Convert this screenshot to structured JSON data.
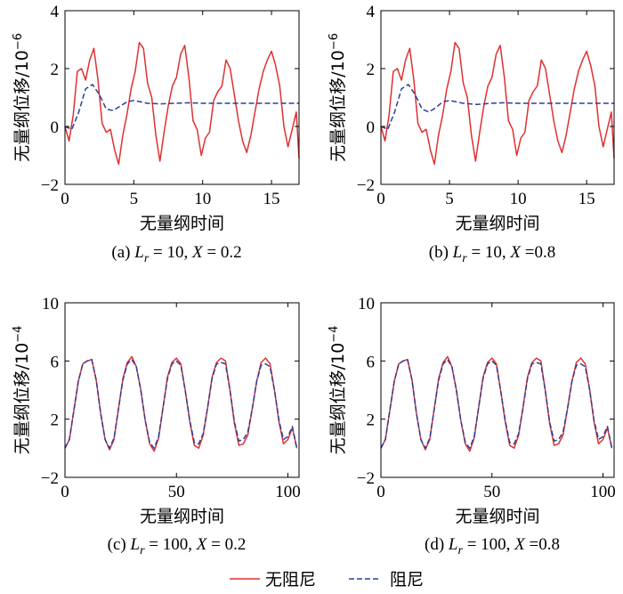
{
  "legend": {
    "undamped": "无阻尼",
    "damped": "阻尼",
    "undamped_color": "#e03030",
    "damped_color": "#2b3f9a"
  },
  "chart_data": [
    {
      "type": "line",
      "caption_prefix": "(a) ",
      "caption_suffix": "= 10, X = 0.2",
      "xlabel": "无量纲时间",
      "ylabel": "无量纲位移/10",
      "ylabel_exp": "−6",
      "xlim": [
        0,
        17
      ],
      "ylim": [
        -2,
        4
      ],
      "xticks": [
        0,
        5,
        10,
        15
      ],
      "yticks": [
        -2,
        0,
        2,
        4
      ],
      "series": [
        {
          "key": "undamped",
          "x": [
            0,
            0.3,
            0.6,
            0.9,
            1.2,
            1.5,
            1.8,
            2.1,
            2.4,
            2.7,
            3.0,
            3.3,
            3.6,
            3.9,
            4.2,
            4.5,
            4.8,
            5.1,
            5.4,
            5.7,
            6.0,
            6.3,
            6.6,
            6.9,
            7.2,
            7.5,
            7.8,
            8.1,
            8.4,
            8.7,
            9.0,
            9.3,
            9.6,
            9.9,
            10.2,
            10.5,
            10.8,
            11.1,
            11.4,
            11.7,
            12.0,
            12.3,
            12.6,
            12.9,
            13.2,
            13.5,
            13.8,
            14.1,
            14.4,
            14.7,
            15.0,
            15.3,
            15.6,
            15.9,
            16.2,
            16.5,
            16.8,
            17.0
          ],
          "y": [
            0.0,
            -0.5,
            0.4,
            1.9,
            2.0,
            1.6,
            2.3,
            2.7,
            1.6,
            0.1,
            -0.2,
            -0.1,
            -0.8,
            -1.3,
            -0.3,
            0.4,
            1.3,
            1.9,
            2.9,
            2.7,
            1.5,
            1.0,
            -0.3,
            -1.2,
            -0.2,
            0.7,
            1.4,
            1.7,
            2.5,
            2.8,
            1.7,
            0.2,
            -0.1,
            -1.0,
            -0.4,
            -0.2,
            0.9,
            1.2,
            1.4,
            2.3,
            2.0,
            1.1,
            0.2,
            -0.5,
            -0.9,
            -0.3,
            0.5,
            1.3,
            1.9,
            2.3,
            2.6,
            2.1,
            1.4,
            0.0,
            -0.7,
            -0.1,
            0.5,
            -1.1
          ]
        },
        {
          "key": "damped",
          "x": [
            0,
            0.5,
            1.0,
            1.5,
            2.0,
            2.5,
            3.0,
            3.5,
            4.0,
            4.5,
            5.0,
            5.5,
            6.0,
            7.0,
            8.0,
            9.0,
            10.0,
            11.0,
            12.0,
            13.0,
            14.0,
            15.0,
            16.0,
            17.0
          ],
          "y": [
            0.0,
            -0.1,
            0.5,
            1.3,
            1.45,
            1.1,
            0.6,
            0.55,
            0.7,
            0.85,
            0.9,
            0.85,
            0.8,
            0.78,
            0.8,
            0.82,
            0.8,
            0.8,
            0.8,
            0.8,
            0.8,
            0.8,
            0.8,
            0.8
          ]
        }
      ]
    },
    {
      "type": "line",
      "caption_prefix": "(b) ",
      "caption_suffix": "= 10, X =0.8",
      "xlabel": "无量纲时间",
      "ylabel": "无量纲位移/10",
      "ylabel_exp": "−6",
      "xlim": [
        0,
        17
      ],
      "ylim": [
        -2,
        4
      ],
      "xticks": [
        0,
        5,
        10,
        15
      ],
      "yticks": [
        -2,
        0,
        2,
        4
      ],
      "series": [
        {
          "key": "undamped",
          "x": [
            0,
            0.3,
            0.6,
            0.9,
            1.2,
            1.5,
            1.8,
            2.1,
            2.4,
            2.7,
            3.0,
            3.3,
            3.6,
            3.9,
            4.2,
            4.5,
            4.8,
            5.1,
            5.4,
            5.7,
            6.0,
            6.3,
            6.6,
            6.9,
            7.2,
            7.5,
            7.8,
            8.1,
            8.4,
            8.7,
            9.0,
            9.3,
            9.6,
            9.9,
            10.2,
            10.5,
            10.8,
            11.1,
            11.4,
            11.7,
            12.0,
            12.3,
            12.6,
            12.9,
            13.2,
            13.5,
            13.8,
            14.1,
            14.4,
            14.7,
            15.0,
            15.3,
            15.6,
            15.9,
            16.2,
            16.5,
            16.8,
            17.0
          ],
          "y": [
            0.0,
            -0.5,
            0.4,
            1.9,
            2.0,
            1.6,
            2.3,
            2.7,
            1.6,
            0.1,
            -0.2,
            -0.1,
            -0.8,
            -1.3,
            -0.3,
            0.4,
            1.3,
            1.9,
            2.9,
            2.7,
            1.5,
            1.0,
            -0.3,
            -1.2,
            -0.2,
            0.7,
            1.4,
            1.7,
            2.5,
            2.8,
            1.7,
            0.2,
            -0.1,
            -1.0,
            -0.4,
            -0.2,
            0.9,
            1.2,
            1.4,
            2.3,
            2.0,
            1.1,
            0.2,
            -0.5,
            -0.9,
            -0.3,
            0.5,
            1.3,
            1.9,
            2.3,
            2.6,
            2.1,
            1.4,
            0.0,
            -0.7,
            -0.1,
            0.5,
            -1.1
          ]
        },
        {
          "key": "damped",
          "x": [
            0,
            0.5,
            1.0,
            1.5,
            2.0,
            2.5,
            3.0,
            3.5,
            4.0,
            4.5,
            5.0,
            5.5,
            6.0,
            7.0,
            8.0,
            9.0,
            10.0,
            11.0,
            12.0,
            13.0,
            14.0,
            15.0,
            16.0,
            17.0
          ],
          "y": [
            0.0,
            -0.1,
            0.5,
            1.3,
            1.45,
            1.1,
            0.6,
            0.5,
            0.65,
            0.85,
            0.9,
            0.85,
            0.8,
            0.76,
            0.8,
            0.82,
            0.8,
            0.8,
            0.8,
            0.8,
            0.8,
            0.8,
            0.8,
            0.8
          ]
        }
      ]
    },
    {
      "type": "line",
      "caption_prefix": "(c) ",
      "caption_suffix": "= 100, X = 0.2",
      "xlabel": "无量纲时间",
      "ylabel": "无量纲位移/10",
      "ylabel_exp": "−4",
      "xlim": [
        0,
        105
      ],
      "ylim": [
        -2,
        10
      ],
      "xticks": [
        0,
        50,
        100
      ],
      "yticks": [
        -2,
        2,
        6,
        10
      ],
      "series": [
        {
          "key": "undamped",
          "x": [
            0,
            2,
            4,
            6,
            8,
            10,
            12,
            14,
            16,
            18,
            20,
            22,
            24,
            26,
            28,
            30,
            32,
            34,
            36,
            38,
            40,
            42,
            44,
            46,
            48,
            50,
            52,
            54,
            56,
            58,
            60,
            62,
            64,
            66,
            68,
            70,
            72,
            74,
            76,
            78,
            80,
            82,
            84,
            86,
            88,
            90,
            92,
            94,
            96,
            98,
            100,
            102,
            104
          ],
          "y": [
            0.0,
            0.6,
            2.6,
            4.6,
            5.8,
            6.0,
            6.1,
            4.7,
            2.4,
            0.6,
            -0.1,
            0.6,
            2.7,
            4.8,
            5.9,
            6.3,
            5.6,
            4.0,
            1.9,
            0.3,
            -0.2,
            0.7,
            2.8,
            4.9,
            5.9,
            6.2,
            5.8,
            3.9,
            1.8,
            0.2,
            0.0,
            0.9,
            2.8,
            4.9,
            5.9,
            6.2,
            6.0,
            4.0,
            1.7,
            0.2,
            0.3,
            0.9,
            2.7,
            4.6,
            5.9,
            6.2,
            5.8,
            4.0,
            1.8,
            0.3,
            0.6,
            1.4,
            0.0
          ]
        },
        {
          "key": "damped",
          "x": [
            0,
            2,
            4,
            6,
            8,
            10,
            12,
            14,
            16,
            18,
            20,
            22,
            24,
            26,
            28,
            30,
            32,
            34,
            36,
            38,
            40,
            42,
            44,
            46,
            48,
            50,
            52,
            54,
            56,
            58,
            60,
            62,
            64,
            66,
            68,
            70,
            72,
            74,
            76,
            78,
            80,
            82,
            84,
            86,
            88,
            90,
            92,
            94,
            96,
            98,
            100,
            102,
            104
          ],
          "y": [
            0.0,
            0.6,
            2.6,
            4.6,
            5.8,
            6.0,
            6.1,
            4.7,
            2.4,
            0.6,
            0.0,
            0.7,
            2.7,
            4.7,
            5.8,
            6.1,
            5.6,
            4.0,
            1.9,
            0.4,
            0.0,
            0.8,
            2.8,
            4.8,
            5.8,
            6.0,
            5.7,
            3.9,
            1.9,
            0.4,
            0.3,
            1.0,
            2.8,
            4.8,
            5.8,
            5.9,
            5.8,
            4.0,
            1.8,
            0.5,
            0.6,
            1.1,
            2.7,
            4.6,
            5.7,
            5.8,
            5.6,
            4.0,
            1.9,
            0.6,
            0.8,
            1.5,
            0.0
          ]
        }
      ]
    },
    {
      "type": "line",
      "caption_prefix": "(d) ",
      "caption_suffix": "= 100, X =0.8",
      "xlabel": "无量纲时间",
      "ylabel": "无量纲位移/10",
      "ylabel_exp": "−4",
      "xlim": [
        0,
        105
      ],
      "ylim": [
        -2,
        10
      ],
      "xticks": [
        0,
        50,
        100
      ],
      "yticks": [
        -2,
        2,
        6,
        10
      ],
      "series": [
        {
          "key": "undamped",
          "x": [
            0,
            2,
            4,
            6,
            8,
            10,
            12,
            14,
            16,
            18,
            20,
            22,
            24,
            26,
            28,
            30,
            32,
            34,
            36,
            38,
            40,
            42,
            44,
            46,
            48,
            50,
            52,
            54,
            56,
            58,
            60,
            62,
            64,
            66,
            68,
            70,
            72,
            74,
            76,
            78,
            80,
            82,
            84,
            86,
            88,
            90,
            92,
            94,
            96,
            98,
            100,
            102,
            104
          ],
          "y": [
            0.0,
            0.6,
            2.6,
            4.6,
            5.8,
            6.0,
            6.1,
            4.7,
            2.4,
            0.6,
            -0.1,
            0.6,
            2.7,
            4.8,
            5.9,
            6.3,
            5.6,
            4.0,
            1.9,
            0.3,
            -0.2,
            0.7,
            2.8,
            4.9,
            5.9,
            6.2,
            5.8,
            3.9,
            1.8,
            0.2,
            0.0,
            0.9,
            2.8,
            4.9,
            5.9,
            6.2,
            6.0,
            4.0,
            1.7,
            0.2,
            0.3,
            0.9,
            2.7,
            4.6,
            5.9,
            6.2,
            5.8,
            4.0,
            1.8,
            0.3,
            0.6,
            1.4,
            0.0
          ]
        },
        {
          "key": "damped",
          "x": [
            0,
            2,
            4,
            6,
            8,
            10,
            12,
            14,
            16,
            18,
            20,
            22,
            24,
            26,
            28,
            30,
            32,
            34,
            36,
            38,
            40,
            42,
            44,
            46,
            48,
            50,
            52,
            54,
            56,
            58,
            60,
            62,
            64,
            66,
            68,
            70,
            72,
            74,
            76,
            78,
            80,
            82,
            84,
            86,
            88,
            90,
            92,
            94,
            96,
            98,
            100,
            102,
            104
          ],
          "y": [
            0.0,
            0.6,
            2.6,
            4.6,
            5.8,
            6.0,
            6.1,
            4.7,
            2.4,
            0.6,
            0.0,
            0.7,
            2.7,
            4.7,
            5.8,
            6.1,
            5.6,
            4.0,
            1.9,
            0.4,
            0.0,
            0.8,
            2.8,
            4.8,
            5.8,
            6.0,
            5.7,
            3.9,
            1.9,
            0.4,
            0.3,
            1.0,
            2.8,
            4.8,
            5.8,
            5.9,
            5.8,
            4.0,
            1.8,
            0.5,
            0.6,
            1.1,
            2.7,
            4.6,
            5.7,
            5.8,
            5.6,
            4.0,
            1.9,
            0.6,
            0.8,
            1.5,
            0.0
          ]
        }
      ]
    }
  ]
}
